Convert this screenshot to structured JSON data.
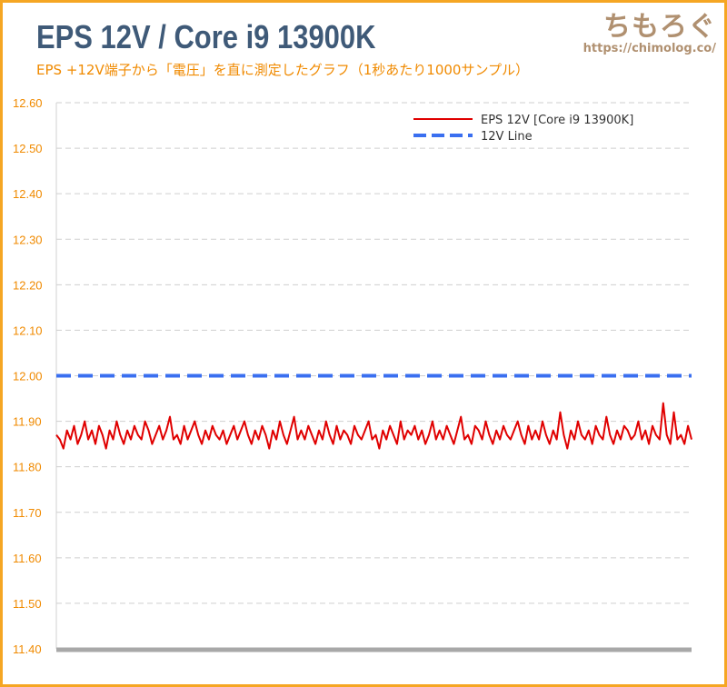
{
  "header": {
    "title": "EPS 12V / Core i9 13900K",
    "subtitle": "EPS +12V端子から「電圧」を直に測定したグラフ（1秒あたり1000サンプル）",
    "brand_logo": "ちもろぐ",
    "brand_url": "https://chimolog.co/"
  },
  "chart_data": {
    "type": "line",
    "title": "EPS 12V / Core i9 13900K",
    "subtitle": "EPS +12V端子から「電圧」を直に測定したグラフ（1秒あたり1000サンプル）",
    "xlabel": "",
    "ylabel": "",
    "ylim": [
      11.4,
      12.6
    ],
    "yticks": [
      "12.60",
      "12.50",
      "12.40",
      "12.30",
      "12.20",
      "12.10",
      "12.00",
      "11.90",
      "11.80",
      "11.70",
      "11.60",
      "11.50",
      "11.40"
    ],
    "grid": true,
    "legend_position": "top-right",
    "series": [
      {
        "name": "EPS 12V [Core i9 13900K]",
        "color": "#e00000",
        "style": "solid",
        "values": [
          11.87,
          11.86,
          11.84,
          11.88,
          11.86,
          11.89,
          11.85,
          11.87,
          11.9,
          11.86,
          11.88,
          11.85,
          11.89,
          11.87,
          11.84,
          11.88,
          11.86,
          11.9,
          11.87,
          11.85,
          11.88,
          11.86,
          11.89,
          11.87,
          11.86,
          11.9,
          11.88,
          11.85,
          11.87,
          11.89,
          11.86,
          11.88,
          11.91,
          11.86,
          11.87,
          11.85,
          11.89,
          11.86,
          11.88,
          11.9,
          11.87,
          11.85,
          11.88,
          11.86,
          11.89,
          11.87,
          11.86,
          11.88,
          11.85,
          11.87,
          11.89,
          11.86,
          11.88,
          11.9,
          11.87,
          11.85,
          11.88,
          11.86,
          11.89,
          11.87,
          11.84,
          11.88,
          11.86,
          11.9,
          11.87,
          11.85,
          11.88,
          11.91,
          11.86,
          11.88,
          11.86,
          11.89,
          11.87,
          11.85,
          11.88,
          11.86,
          11.9,
          11.87,
          11.85,
          11.89,
          11.86,
          11.88,
          11.87,
          11.85,
          11.89,
          11.87,
          11.86,
          11.88,
          11.9,
          11.86,
          11.87,
          11.84,
          11.88,
          11.86,
          11.89,
          11.87,
          11.85,
          11.9,
          11.86,
          11.88,
          11.87,
          11.89,
          11.86,
          11.88,
          11.85,
          11.87,
          11.9,
          11.86,
          11.88,
          11.86,
          11.89,
          11.87,
          11.85,
          11.88,
          11.91,
          11.86,
          11.87,
          11.85,
          11.89,
          11.88,
          11.86,
          11.9,
          11.87,
          11.85,
          11.88,
          11.86,
          11.89,
          11.87,
          11.86,
          11.88,
          11.9,
          11.87,
          11.85,
          11.89,
          11.86,
          11.88,
          11.86,
          11.9,
          11.87,
          11.85,
          11.88,
          11.86,
          11.92,
          11.87,
          11.84,
          11.88,
          11.86,
          11.9,
          11.87,
          11.86,
          11.88,
          11.85,
          11.89,
          11.87,
          11.86,
          11.91,
          11.87,
          11.85,
          11.88,
          11.86,
          11.89,
          11.88,
          11.86,
          11.87,
          11.9,
          11.86,
          11.88,
          11.85,
          11.89,
          11.87,
          11.86,
          11.94,
          11.87,
          11.85,
          11.92,
          11.86,
          11.87,
          11.85,
          11.89,
          11.86
        ]
      },
      {
        "name": "12V Line",
        "color": "#3a6ff0",
        "style": "dashed",
        "value": 12.0
      }
    ]
  }
}
